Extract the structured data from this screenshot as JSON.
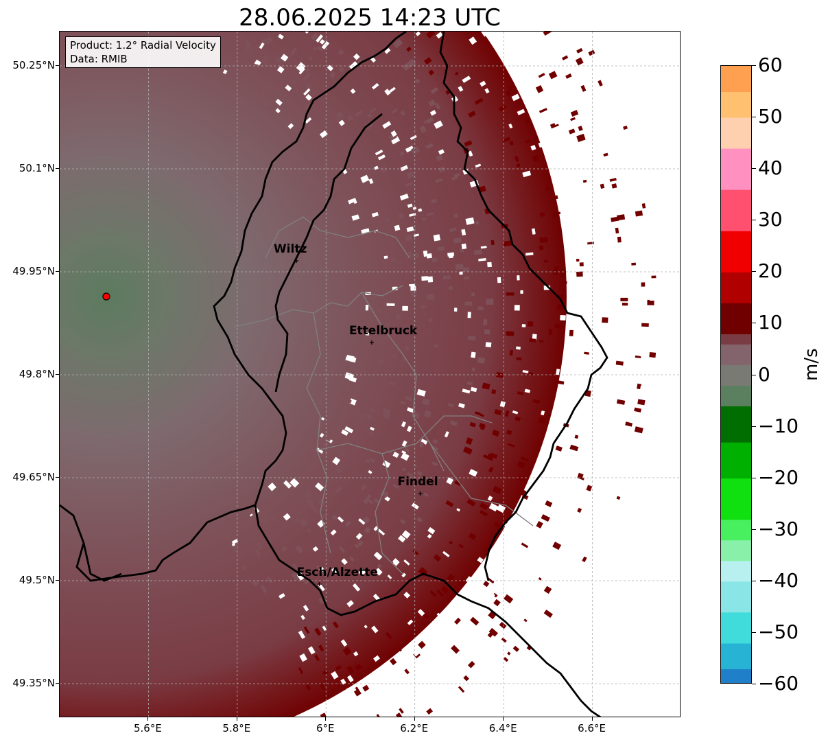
{
  "title": "28.06.2025 14:23 UTC",
  "info": {
    "product": "Product: 1.2° Radial Velocity",
    "data": "Data: RMIB"
  },
  "map": {
    "lat_ticks": [
      {
        "value": 50.25,
        "label": "50.25°N"
      },
      {
        "value": 50.1,
        "label": "50.1°N"
      },
      {
        "value": 49.95,
        "label": "49.95°N"
      },
      {
        "value": 49.8,
        "label": "49.8°N"
      },
      {
        "value": 49.65,
        "label": "49.65°N"
      },
      {
        "value": 49.5,
        "label": "49.5°N"
      },
      {
        "value": 49.35,
        "label": "49.35°N"
      }
    ],
    "lon_ticks": [
      {
        "value": 5.6,
        "label": "5.6°E"
      },
      {
        "value": 5.8,
        "label": "5.8°E"
      },
      {
        "value": 6.0,
        "label": "6°E"
      },
      {
        "value": 6.2,
        "label": "6.2°E"
      },
      {
        "value": 6.4,
        "label": "6.4°E"
      },
      {
        "value": 6.6,
        "label": "6.6°E"
      }
    ],
    "extent": {
      "lon_min": 5.4,
      "lon_max": 6.8,
      "lat_min": 49.3,
      "lat_max": 50.3
    },
    "radar_site": {
      "lon": 5.505,
      "lat": 49.914
    },
    "cities": [
      {
        "name": "Wiltz",
        "lon": 5.933,
        "lat": 49.966
      },
      {
        "name": "Ettelbruck",
        "lon": 6.103,
        "lat": 49.847
      },
      {
        "name": "Findel",
        "lon": 6.212,
        "lat": 49.627
      },
      {
        "name": "Esch/Alzette",
        "lon": 5.985,
        "lat": 49.495
      }
    ]
  },
  "colorbar": {
    "label": "m/s",
    "min": -60,
    "max": 60,
    "ticks": [
      {
        "value": 60,
        "label": "60"
      },
      {
        "value": 50,
        "label": "50"
      },
      {
        "value": 40,
        "label": "40"
      },
      {
        "value": 30,
        "label": "30"
      },
      {
        "value": 20,
        "label": "20"
      },
      {
        "value": 10,
        "label": "10"
      },
      {
        "value": 0,
        "label": "0"
      },
      {
        "value": -10,
        "label": "−10"
      },
      {
        "value": -20,
        "label": "−20"
      },
      {
        "value": -30,
        "label": "−30"
      },
      {
        "value": -40,
        "label": "−40"
      },
      {
        "value": -50,
        "label": "−50"
      },
      {
        "value": -60,
        "label": "−60"
      }
    ],
    "stops": [
      {
        "from": -60,
        "to": -57,
        "color": "#1f7fc8"
      },
      {
        "from": -57,
        "to": -52,
        "color": "#27b4d4"
      },
      {
        "from": -52,
        "to": -46,
        "color": "#40dcdc"
      },
      {
        "from": -46,
        "to": -40,
        "color": "#8ae6e6"
      },
      {
        "from": -40,
        "to": -36,
        "color": "#b8f0f0"
      },
      {
        "from": -36,
        "to": -32,
        "color": "#88f0a8"
      },
      {
        "from": -32,
        "to": -28,
        "color": "#48f060"
      },
      {
        "from": -28,
        "to": -20,
        "color": "#10e010"
      },
      {
        "from": -20,
        "to": -13,
        "color": "#00b000"
      },
      {
        "from": -13,
        "to": -6,
        "color": "#006e00"
      },
      {
        "from": -6,
        "to": -2,
        "color": "#5a8060"
      },
      {
        "from": -2,
        "to": 2,
        "color": "#7a7a74"
      },
      {
        "from": 2,
        "to": 6,
        "color": "#84646c"
      },
      {
        "from": 6,
        "to": 8,
        "color": "#7a3c44"
      },
      {
        "from": 8,
        "to": 14,
        "color": "#700000"
      },
      {
        "from": 14,
        "to": 20,
        "color": "#b00000"
      },
      {
        "from": 20,
        "to": 28,
        "color": "#f00000"
      },
      {
        "from": 28,
        "to": 36,
        "color": "#ff5070"
      },
      {
        "from": 36,
        "to": 44,
        "color": "#ff90c0"
      },
      {
        "from": 44,
        "to": 50,
        "color": "#ffd0b0"
      },
      {
        "from": 50,
        "to": 55,
        "color": "#ffc070"
      },
      {
        "from": 55,
        "to": 60,
        "color": "#ffa050"
      }
    ]
  },
  "colors": {
    "border": "#000000",
    "canton_border": "#808080",
    "grid": "#b0b0b0",
    "radar_marker": "#ff0000"
  }
}
